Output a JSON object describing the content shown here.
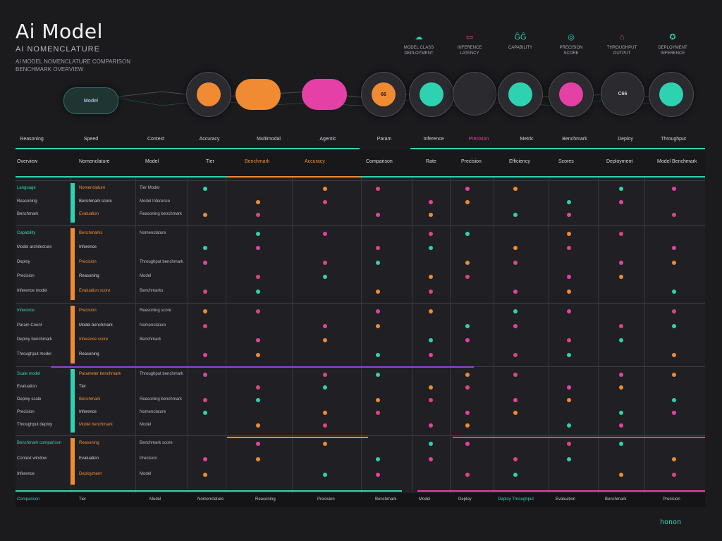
{
  "header": {
    "title": "Ai Model",
    "subtitle": "AI NOMENCLATURE",
    "desc": [
      "AI MODEL NOMENCLATURE COMPARISON",
      "BENCHMARK OVERVIEW"
    ]
  },
  "legend": [
    {
      "icon": "☁",
      "label": "MODEL CLASS",
      "sub": "DEPLOYMENT",
      "color": "#2fd2b0"
    },
    {
      "icon": "▭",
      "label": "INFERENCE",
      "sub": "LATENCY",
      "color": "#e0447c"
    },
    {
      "icon": "ĜĜ",
      "label": "CAPABILITY",
      "sub": "",
      "color": "#2fd2b0"
    },
    {
      "icon": "◎",
      "label": "PRECISION",
      "sub": "SCORE",
      "color": "#2fd2b0"
    },
    {
      "icon": "⌂",
      "label": "THROUGHPUT",
      "sub": "OUTPUT",
      "color": "#e0447c"
    },
    {
      "icon": "✪",
      "label": "DEPLOYMENT",
      "sub": "INFERENCE",
      "color": "#2fd2b0"
    }
  ],
  "hubs": [
    {
      "label": "Model",
      "color": "#2fd2b0"
    },
    {
      "label": "",
      "color": "#f08a33"
    },
    {
      "label": "",
      "color": "#f08a33",
      "cloud": true
    },
    {
      "label": "",
      "color": "#e540a6",
      "cloud": true
    },
    {
      "label": "66",
      "color": "#f08a33"
    },
    {
      "label": "",
      "color": "#2fd2b0"
    },
    {
      "label": "",
      "color": "#3a3a40"
    },
    {
      "label": "",
      "color": "#2fd2b0"
    },
    {
      "label": "",
      "color": "#e540a6"
    },
    {
      "label": "C66",
      "color": "#3a3a40"
    },
    {
      "label": "",
      "color": "#2fd2b0"
    }
  ],
  "columns": [
    "Reasoning",
    "Speed",
    "Context",
    "Accuracy",
    "Multimodal",
    "Agentic",
    "Param",
    "Inference",
    "Precision",
    "Metric",
    "Benchmark",
    "Deploy",
    "Throughput"
  ],
  "table_header": [
    "Overview",
    "Nomenclature",
    "Model",
    "Tier",
    "Benchmark",
    "Accuracy",
    "Comparison",
    "Rate",
    "Precision",
    "Efficiency",
    "Scores",
    "Deployment",
    "Model Benchmark"
  ],
  "sections": [
    {
      "bar": "#2fd2b0",
      "rows": [
        {
          "label": "Language",
          "name": "Nomenclature",
          "tier": "Tier Model"
        },
        {
          "label": "Reasoning",
          "name": "Benchmark score",
          "tier": "Model Inference"
        },
        {
          "label": "Benchmark",
          "name": "Evaluation",
          "tier": "Reasoning benchmark"
        }
      ]
    },
    {
      "bar": "#f08a33",
      "rows": [
        {
          "label": "Capability",
          "name": "Benchmarks",
          "tier": "Nomenclature"
        },
        {
          "label": "Model architecture",
          "name": "Inference",
          "tier": ""
        },
        {
          "label": "Deploy",
          "name": "Precision",
          "tier": "Throughput benchmark"
        },
        {
          "label": "Precision",
          "name": "Reasoning",
          "tier": "Model"
        },
        {
          "label": "Inference model",
          "name": "Evaluation score",
          "tier": "Benchmarks"
        }
      ]
    },
    {
      "bar": "#f08a33",
      "rows": [
        {
          "label": "Inference",
          "name": "Precision",
          "tier": "Reasoning score"
        },
        {
          "label": "Param Count",
          "name": "Model benchmark",
          "tier": "Nomenclature"
        },
        {
          "label": "Deploy benchmark",
          "name": "Inference score",
          "tier": "Benchmark"
        },
        {
          "label": "Throughput model",
          "name": "Reasoning",
          "tier": ""
        }
      ]
    },
    {
      "bar": "#2fd2b0",
      "rows": [
        {
          "label": "Scale model",
          "name": "Parameter benchmark",
          "tier": "Throughput benchmark"
        },
        {
          "label": "Evaluation",
          "name": "Tier",
          "tier": ""
        },
        {
          "label": "Deploy scale",
          "name": "Benchmark",
          "tier": "Reasoning benchmark"
        },
        {
          "label": "Precision",
          "name": "Inference",
          "tier": "Nomenclature"
        },
        {
          "label": "Throughput deploy",
          "name": "Model benchmark",
          "tier": "Model"
        }
      ]
    },
    {
      "bar": "#f08a33",
      "rows": [
        {
          "label": "Benchmark comparison",
          "name": "Reasoning",
          "tier": "Benchmark score"
        },
        {
          "label": "Context window",
          "name": "Evaluation",
          "tier": "Precision"
        },
        {
          "label": "Inference",
          "name": "Deployment",
          "tier": "Model"
        }
      ]
    }
  ],
  "footer": [
    "Comparison",
    "Tier",
    "Model",
    "Nomenclature",
    "Reasoning",
    "Precision",
    "Benchmark",
    "Model",
    "Deploy",
    "Deploy Throughput",
    "Evaluation",
    "Benchmark",
    "Precision"
  ],
  "brand": "honon",
  "colors": {
    "teal": "#2fd2b0",
    "orange": "#f08a33",
    "magenta": "#e540a6",
    "pink": "#e0447c",
    "purple": "#9b3fd6"
  }
}
